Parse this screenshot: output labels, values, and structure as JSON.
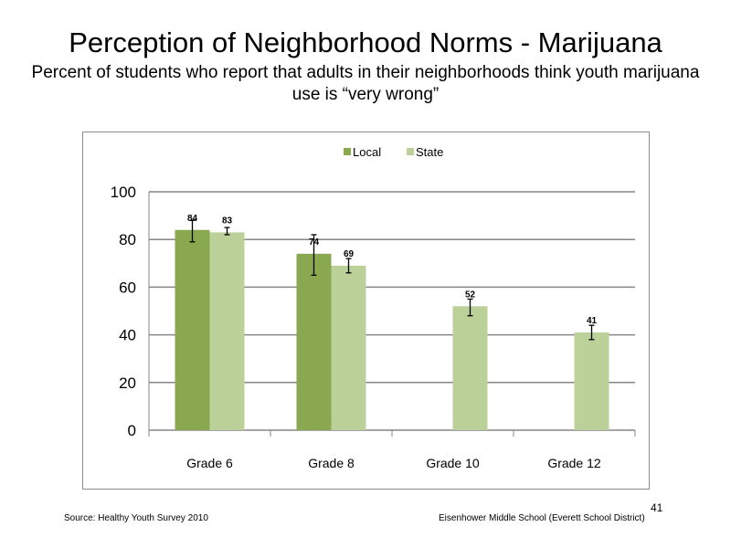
{
  "slide": {
    "title": "Perception of Neighborhood Norms - Marijuana",
    "subtitle": "Percent of students who report that adults in their neighborhoods think youth marijuana use is “very wrong”",
    "source": "Source: Healthy Youth Survey 2010",
    "school": "Eisenhower Middle School (Everett School District)",
    "page_number": "41"
  },
  "colors": {
    "local": "#8aa850",
    "state": "#bcd19a",
    "gridline": "#868686",
    "frame": "#8c8c8c"
  },
  "chart_data": {
    "type": "bar",
    "categories": [
      "Grade 6",
      "Grade 8",
      "Grade 10",
      "Grade 12"
    ],
    "series": [
      {
        "name": "Local",
        "values": [
          84,
          74,
          null,
          null
        ],
        "labels": [
          "84",
          "74",
          "",
          ""
        ],
        "error_low": [
          79,
          65,
          null,
          null
        ],
        "error_high": [
          88,
          82,
          null,
          null
        ]
      },
      {
        "name": "State",
        "values": [
          83,
          69,
          52,
          41
        ],
        "labels": [
          "83",
          "69",
          "52",
          "41"
        ],
        "error_low": [
          82,
          66,
          48,
          38
        ],
        "error_high": [
          85,
          72,
          55,
          44
        ]
      }
    ],
    "yticks": [
      "0",
      "20",
      "40",
      "60",
      "80",
      "100"
    ],
    "ylim": [
      0,
      100
    ],
    "grid": true,
    "legend_position": "top"
  }
}
